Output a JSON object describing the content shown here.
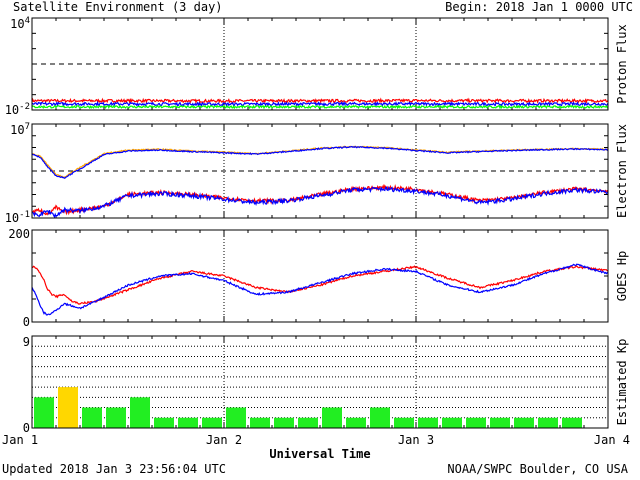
{
  "header": {
    "title": "Satellite Environment (3 day)",
    "begin": "Begin:  2018 Jan 1 0000 UTC"
  },
  "footer": {
    "updated": "Updated 2018 Jan  3 23:56:04 UTC",
    "credit": "NOAA/SWPC Boulder, CO USA"
  },
  "colors": {
    "red": "#ff0000",
    "blue": "#0000ff",
    "green": "#00ff00",
    "orange": "#ffa500",
    "kp_normal": "#22ee22",
    "kp_elevated": "#ffd700"
  },
  "chart_data": [
    {
      "id": "proton",
      "type": "line",
      "ylabel": "Proton Flux",
      "yscale": "log",
      "ylim": [
        0.01,
        10000
      ],
      "ytick_labels": [
        {
          "base": "10",
          "exp": "4"
        },
        {
          "base": "10",
          "exp": "-2"
        }
      ],
      "threshold": 10,
      "x": [
        0,
        12,
        24,
        36,
        48,
        60,
        72
      ],
      "series": [
        {
          "color": "red",
          "values": [
            0.04,
            0.04,
            0.039,
            0.04,
            0.041,
            0.04,
            0.04
          ],
          "noise": 0.09
        },
        {
          "color": "blue",
          "values": [
            0.025,
            0.025,
            0.024,
            0.025,
            0.025,
            0.024,
            0.025
          ],
          "noise": 0.09
        },
        {
          "color": "green",
          "values": [
            0.016,
            0.016,
            0.016,
            0.016,
            0.016,
            0.016,
            0.016
          ],
          "noise": 0.07
        }
      ]
    },
    {
      "id": "electron",
      "type": "line",
      "ylabel": "Electron Flux",
      "yscale": "log",
      "ylim": [
        0.1,
        10000000
      ],
      "ytick_labels": [
        {
          "base": "10",
          "exp": "7"
        },
        {
          "base": "10",
          "exp": "-1"
        }
      ],
      "threshold": 1000,
      "x": [
        0,
        1,
        2,
        3,
        4,
        6,
        9,
        12,
        16,
        20,
        24,
        28,
        32,
        36,
        40,
        44,
        48,
        52,
        56,
        60,
        64,
        68,
        72
      ],
      "series": [
        {
          "color": "orange",
          "values": [
            30000,
            20000,
            3000,
            500,
            300,
            2000,
            30000,
            60000,
            70000,
            50000,
            40000,
            30000,
            50000,
            90000,
            120000,
            100000,
            60000,
            40000,
            50000,
            60000,
            70000,
            80000,
            70000
          ],
          "noise": 0.05
        },
        {
          "color": "blue",
          "values": [
            30000,
            15000,
            2000,
            400,
            250,
            1500,
            25000,
            50000,
            60000,
            45000,
            35000,
            28000,
            45000,
            80000,
            110000,
            90000,
            55000,
            35000,
            45000,
            55000,
            65000,
            75000,
            65000
          ],
          "noise": 0.05
        },
        {
          "color": "red",
          "values": [
            0.3,
            0.5,
            0.2,
            0.8,
            0.3,
            0.5,
            1,
            10,
            15,
            10,
            5,
            3,
            3,
            10,
            30,
            40,
            30,
            10,
            3,
            5,
            15,
            30,
            20
          ],
          "noise": 0.15
        },
        {
          "color": "blue",
          "values": [
            0.2,
            0.2,
            0.4,
            0.15,
            0.5,
            0.4,
            1,
            8,
            12,
            8,
            4,
            2,
            3,
            8,
            25,
            30,
            20,
            8,
            2,
            4,
            12,
            25,
            15
          ],
          "noise": 0.18
        }
      ]
    },
    {
      "id": "hp",
      "type": "line",
      "ylabel": "GOES Hp",
      "yscale": "linear",
      "ylim": [
        0,
        200
      ],
      "ytick_labels": [
        "200",
        "0"
      ],
      "x": [
        0,
        0.5,
        1,
        1.5,
        2,
        2.5,
        3,
        4,
        5,
        6,
        8,
        12,
        16,
        20,
        24,
        28,
        32,
        36,
        40,
        44,
        48,
        52,
        56,
        60,
        64,
        68,
        72
      ],
      "series": [
        {
          "color": "red",
          "values": [
            120,
            118,
            108,
            90,
            70,
            60,
            55,
            60,
            45,
            40,
            45,
            70,
            95,
            110,
            100,
            75,
            65,
            80,
            100,
            110,
            120,
            95,
            75,
            90,
            110,
            120,
            112
          ],
          "noise": 2.0
        },
        {
          "color": "blue",
          "values": [
            75,
            60,
            35,
            20,
            15,
            20,
            25,
            40,
            35,
            30,
            45,
            80,
            100,
            105,
            90,
            60,
            65,
            85,
            105,
            115,
            110,
            80,
            65,
            80,
            105,
            125,
            105
          ],
          "noise": 2.0
        }
      ]
    },
    {
      "id": "kp",
      "type": "bar",
      "ylabel": "Estimated Kp",
      "ylim": [
        0,
        9
      ],
      "ytick_labels": [
        "9",
        "0"
      ],
      "bar_hours": 3,
      "values": [
        3,
        4,
        2,
        2,
        3,
        1,
        1,
        1,
        2,
        1,
        1,
        1,
        2,
        1,
        2,
        1,
        1,
        1,
        1,
        1,
        1,
        1,
        1,
        0
      ],
      "colors": [
        "kp_normal",
        "kp_elevated",
        "kp_normal",
        "kp_normal",
        "kp_normal",
        "kp_normal",
        "kp_normal",
        "kp_normal",
        "kp_normal",
        "kp_normal",
        "kp_normal",
        "kp_normal",
        "kp_normal",
        "kp_normal",
        "kp_normal",
        "kp_normal",
        "kp_normal",
        "kp_normal",
        "kp_normal",
        "kp_normal",
        "kp_normal",
        "kp_normal",
        "kp_normal",
        "kp_normal"
      ]
    }
  ],
  "xaxis": {
    "label": "Universal Time",
    "ticks": [
      {
        "hour": 0,
        "label": "Jan 1"
      },
      {
        "hour": 24,
        "label": "Jan 2"
      },
      {
        "hour": 48,
        "label": "Jan 3"
      },
      {
        "hour": 72,
        "label": "Jan 4"
      }
    ]
  }
}
